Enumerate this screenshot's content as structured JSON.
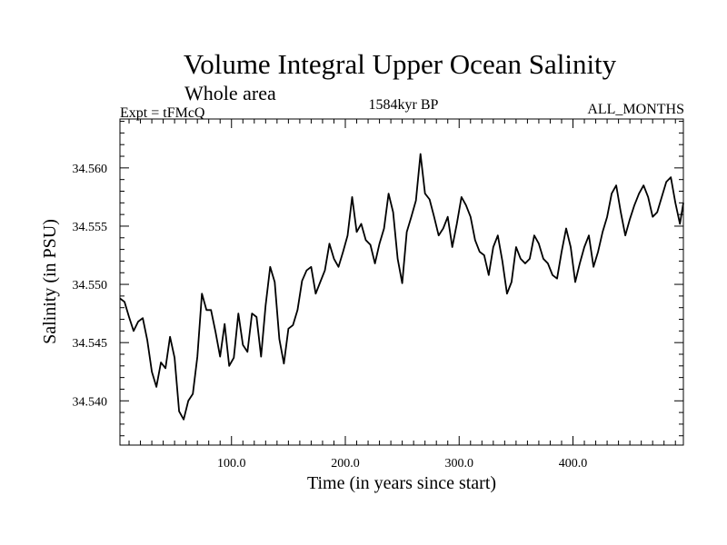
{
  "chart_data": {
    "type": "line",
    "title": "Volume Integral Upper Ocean Salinity",
    "subtitle": "Whole area",
    "left_label": "Expt = tFMcQ",
    "center_label": "1584kyr BP",
    "right_label": "ALL_MONTHS",
    "xlabel": "Time (in years since start)",
    "ylabel": "Salinity (in PSU)",
    "xlim": [
      2,
      497
    ],
    "ylim": [
      34.5362,
      34.5642
    ],
    "xticks": [
      100,
      200,
      300,
      400
    ],
    "xtick_labels": [
      "100.0",
      "200.0",
      "300.0",
      "400.0"
    ],
    "yticks": [
      34.54,
      34.545,
      34.55,
      34.555,
      34.56
    ],
    "ytick_labels": [
      "34.540",
      "34.545",
      "34.550",
      "34.555",
      "34.560"
    ],
    "series": [
      {
        "name": "Salinity",
        "x": [
          2,
          6,
          10,
          14,
          18,
          22,
          26,
          30,
          34,
          38,
          42,
          46,
          50,
          54,
          58,
          62,
          66,
          70,
          74,
          78,
          82,
          86,
          90,
          94,
          98,
          102,
          106,
          110,
          114,
          118,
          122,
          126,
          130,
          134,
          138,
          142,
          146,
          150,
          154,
          158,
          162,
          166,
          170,
          174,
          178,
          182,
          186,
          190,
          194,
          198,
          202,
          206,
          210,
          214,
          218,
          222,
          226,
          230,
          234,
          238,
          242,
          246,
          250,
          254,
          258,
          262,
          266,
          270,
          274,
          278,
          282,
          286,
          290,
          294,
          298,
          302,
          306,
          310,
          314,
          318,
          322,
          326,
          330,
          334,
          338,
          342,
          346,
          350,
          354,
          358,
          362,
          366,
          370,
          374,
          378,
          382,
          386,
          390,
          394,
          398,
          402,
          406,
          410,
          414,
          418,
          422,
          426,
          430,
          434,
          438,
          442,
          446,
          450,
          454,
          458,
          462,
          466,
          470,
          474,
          478,
          482,
          486,
          490,
          494,
          497
        ],
        "values": [
          34.5488,
          34.5485,
          34.5472,
          34.546,
          34.5468,
          34.5471,
          34.5452,
          34.5425,
          34.5412,
          34.5433,
          34.5428,
          34.5455,
          34.5437,
          34.5391,
          34.5384,
          34.54,
          34.5406,
          34.5438,
          34.5492,
          34.5478,
          34.5478,
          34.5459,
          34.5438,
          34.5466,
          34.543,
          34.5437,
          34.5475,
          34.5448,
          34.5442,
          34.5475,
          34.5472,
          34.5438,
          34.5482,
          34.5515,
          34.5502,
          34.5453,
          34.5432,
          34.5462,
          34.5465,
          34.5478,
          34.5503,
          34.5512,
          34.5515,
          34.5492,
          34.5502,
          34.5512,
          34.5535,
          34.5522,
          34.5515,
          34.5528,
          34.5542,
          34.5575,
          34.5545,
          34.5552,
          34.5538,
          34.5534,
          34.5518,
          34.5535,
          34.5548,
          34.5578,
          34.5562,
          34.5522,
          34.5501,
          34.5545,
          34.5558,
          34.5572,
          34.5612,
          34.5578,
          34.5573,
          34.5558,
          34.5542,
          34.5548,
          34.5558,
          34.5532,
          34.5552,
          34.5575,
          34.5568,
          34.5558,
          34.5538,
          34.5528,
          34.5525,
          34.5508,
          34.5532,
          34.5542,
          34.552,
          34.5492,
          34.5502,
          34.5532,
          34.5522,
          34.5518,
          34.5522,
          34.5542,
          34.5535,
          34.5522,
          34.5518,
          34.5508,
          34.5505,
          34.5528,
          34.5548,
          34.5532,
          34.5502,
          34.5518,
          34.5532,
          34.5542,
          34.5515,
          34.5528,
          34.5545,
          34.5558,
          34.5578,
          34.5585,
          34.5562,
          34.5542,
          34.5556,
          34.5568,
          34.5578,
          34.5585,
          34.5575,
          34.5558,
          34.5562,
          34.5575,
          34.5588,
          34.5592,
          34.557,
          34.5552,
          34.557
        ]
      }
    ]
  }
}
